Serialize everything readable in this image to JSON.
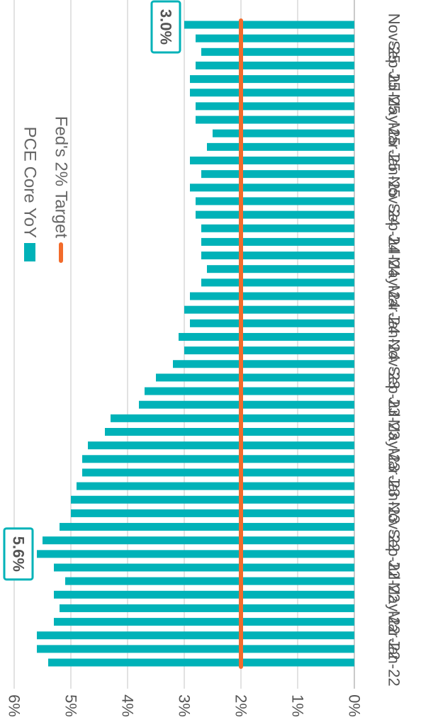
{
  "chart_data": {
    "type": "bar",
    "title": "",
    "orientation": "rotated-clockwise",
    "categories": [
      "Jan-22",
      "Feb-22",
      "Mar-22",
      "Apr-22",
      "May-22",
      "Jun-22",
      "Jul-22",
      "Aug-22",
      "Sep-22",
      "Oct-22",
      "Nov-22",
      "Dec-22",
      "Jan-23",
      "Feb-23",
      "Mar-23",
      "Apr-23",
      "May-23",
      "Jun-23",
      "Jul-23",
      "Aug-23",
      "Sep-23",
      "Oct-23",
      "Nov-23",
      "Dec-23",
      "Jan-24",
      "Feb-24",
      "Mar-24",
      "Apr-24",
      "May-24",
      "Jun-24",
      "Jul-24",
      "Aug-24",
      "Sep-24",
      "Oct-24",
      "Nov-24",
      "Dec-24",
      "Jan-25",
      "Feb-25",
      "Mar-25",
      "Apr-25",
      "May-25",
      "Jun-25",
      "Jul-25",
      "Aug-25",
      "Sep-25",
      "Oct-25",
      "Nov-25",
      "Dec-25"
    ],
    "tick_labels": [
      "Jan-22",
      "Mar-22",
      "May-22",
      "Jul-22",
      "Sep-22",
      "Nov-22",
      "Jan-23",
      "Mar-23",
      "May-23",
      "Jul-23",
      "Sep-23",
      "Nov-23",
      "Jan-24",
      "Mar-24",
      "May-24",
      "Jul-24",
      "Sep-24",
      "Nov-24",
      "Jan-25",
      "Mar-25",
      "May-25",
      "Jul-25",
      "Sep-25",
      "Nov-25"
    ],
    "series": [
      {
        "name": "PCE Core YoY",
        "type": "bar",
        "color": "#00b2b8",
        "values": [
          5.4,
          5.6,
          5.6,
          5.3,
          5.2,
          5.3,
          5.1,
          5.3,
          5.6,
          5.5,
          5.2,
          5.0,
          5.0,
          4.9,
          4.8,
          4.8,
          4.7,
          4.4,
          4.3,
          3.8,
          3.7,
          3.5,
          3.2,
          3.0,
          3.1,
          2.9,
          3.0,
          2.9,
          2.7,
          2.6,
          2.7,
          2.7,
          2.7,
          2.8,
          2.8,
          2.9,
          2.7,
          2.9,
          2.6,
          2.5,
          2.8,
          2.8,
          2.9,
          2.9,
          2.8,
          2.7,
          2.8,
          3.0
        ]
      },
      {
        "name": "Fed's 2% Target",
        "type": "line",
        "color": "#f26b2b",
        "values": [
          2,
          2,
          2,
          2,
          2,
          2,
          2,
          2,
          2,
          2,
          2,
          2,
          2,
          2,
          2,
          2,
          2,
          2,
          2,
          2,
          2,
          2,
          2,
          2,
          2,
          2,
          2,
          2,
          2,
          2,
          2,
          2,
          2,
          2,
          2,
          2,
          2,
          2,
          2,
          2,
          2,
          2,
          2,
          2,
          2,
          2,
          2,
          2
        ]
      }
    ],
    "value_ticks": [
      "0%",
      "1%",
      "2%",
      "3%",
      "4%",
      "5%",
      "6%"
    ],
    "ylim": [
      0,
      6
    ],
    "grid": true,
    "legend_position": "top-right",
    "annotations": [
      {
        "text": "5.6%",
        "category": "Sep-22"
      },
      {
        "text": "3.0%",
        "category": "Dec-25"
      }
    ]
  }
}
